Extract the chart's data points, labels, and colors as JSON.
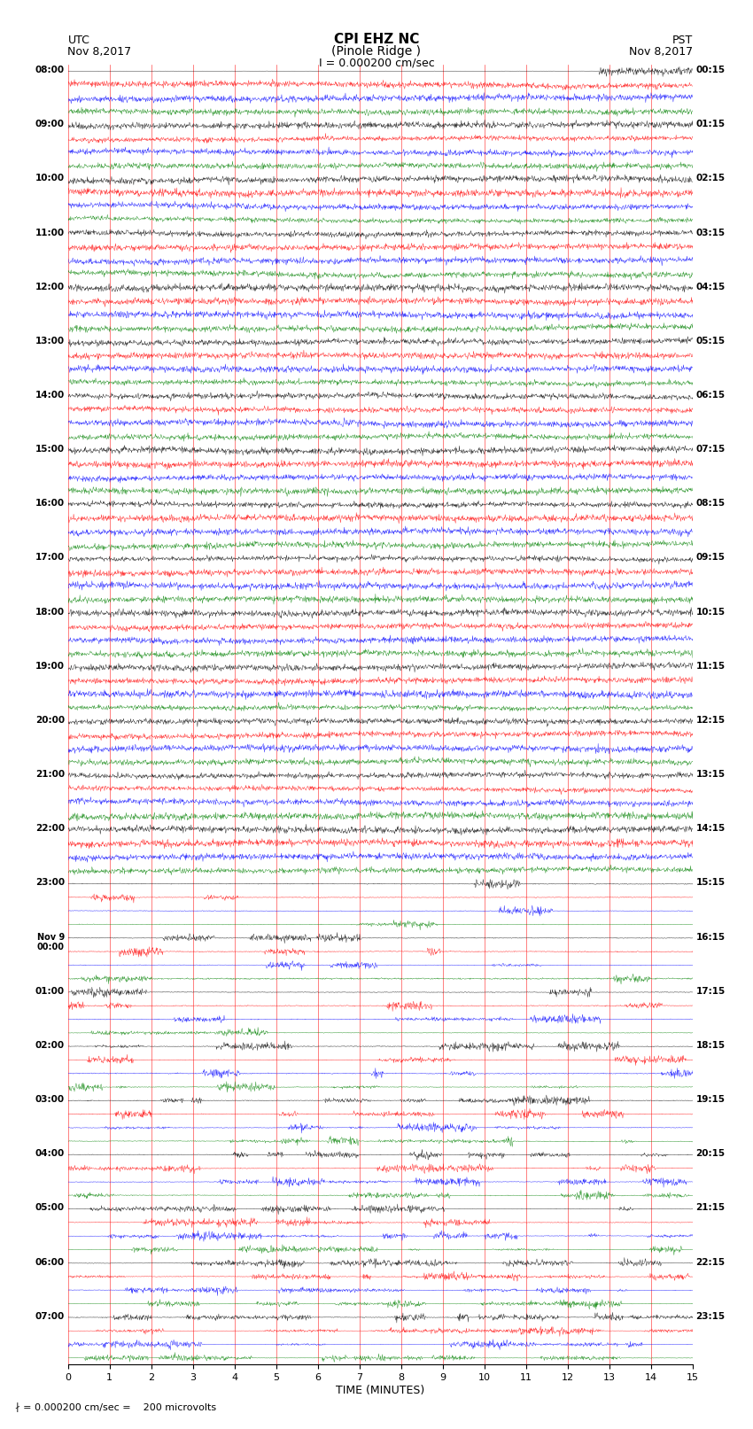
{
  "title_line1": "CPI EHZ NC",
  "title_line2": "(Pinole Ridge )",
  "scale_label": "I = 0.000200 cm/sec",
  "utc_label": "UTC\nNov 8,2017",
  "pst_label": "PST\nNov 8,2017",
  "bottom_label": "∤ = 0.000200 cm/sec =    200 microvolts",
  "xlabel": "TIME (MINUTES)",
  "left_times": [
    "08:00",
    "09:00",
    "10:00",
    "11:00",
    "12:00",
    "13:00",
    "14:00",
    "15:00",
    "16:00",
    "17:00",
    "18:00",
    "19:00",
    "20:00",
    "21:00",
    "22:00",
    "23:00",
    "Nov 9\n00:00",
    "01:00",
    "02:00",
    "03:00",
    "04:00",
    "05:00",
    "06:00",
    "07:00"
  ],
  "right_times": [
    "00:15",
    "01:15",
    "02:15",
    "03:15",
    "04:15",
    "05:15",
    "06:15",
    "07:15",
    "08:15",
    "09:15",
    "10:15",
    "11:15",
    "12:15",
    "13:15",
    "14:15",
    "15:15",
    "16:15",
    "17:15",
    "18:15",
    "19:15",
    "20:15",
    "21:15",
    "22:15",
    "23:15"
  ],
  "n_traces_per_hour": 4,
  "colors": [
    "black",
    "red",
    "blue",
    "green"
  ],
  "minutes": 15,
  "figsize": [
    8.5,
    16.13
  ],
  "dpi": 100,
  "bg_color": "white",
  "grid_color": "red",
  "grid_linewidth": 0.5
}
